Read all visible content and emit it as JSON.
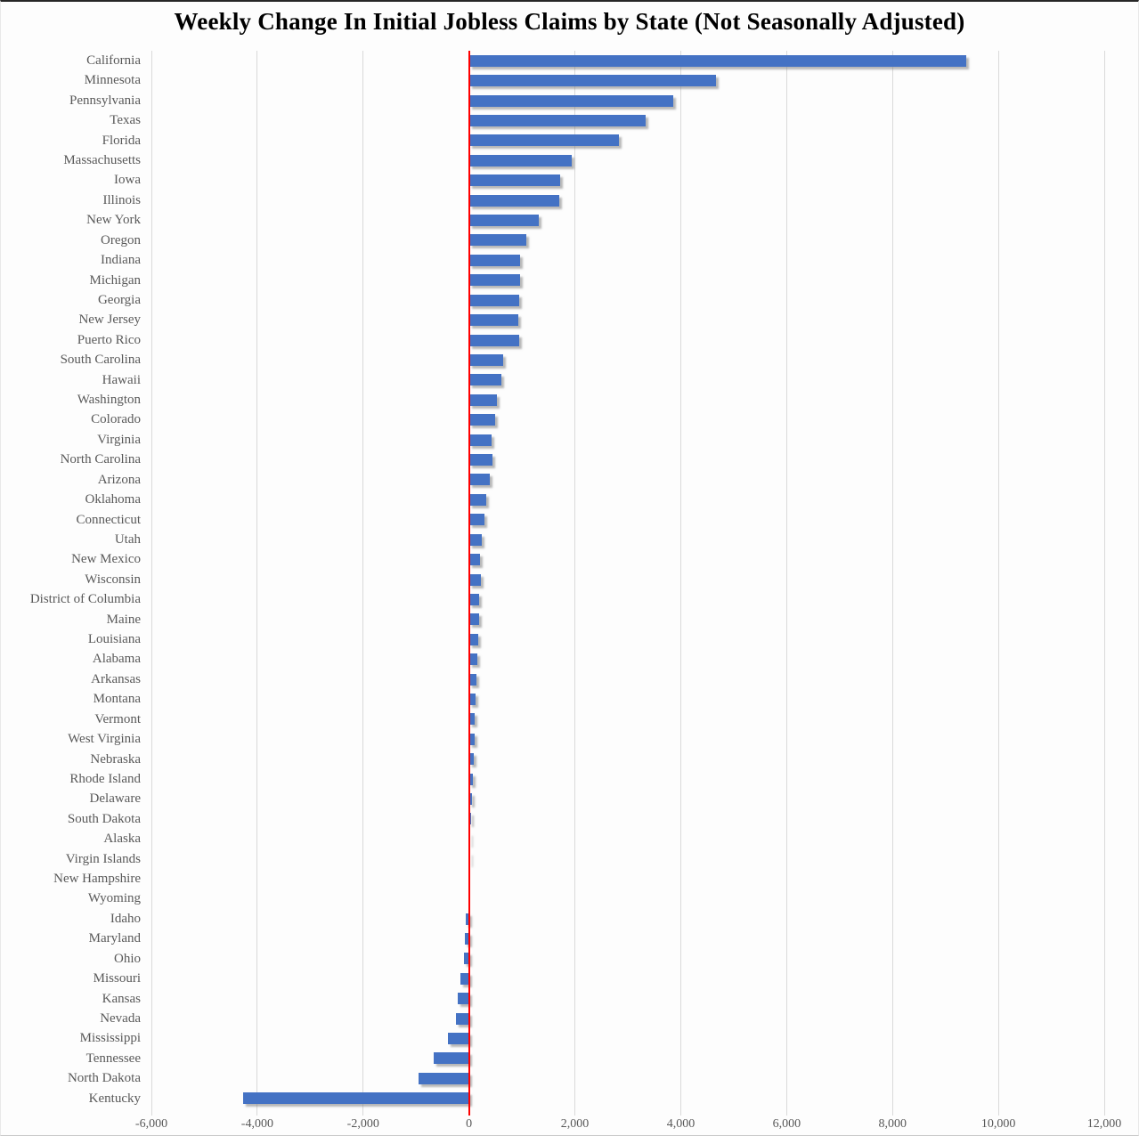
{
  "chart_data": {
    "type": "bar",
    "orientation": "horizontal",
    "title": "Weekly Change In Initial Jobless Claims by State (Not Seasonally Adjusted)",
    "xlabel": "",
    "ylabel": "",
    "xlim": [
      -6000,
      12000
    ],
    "x_ticks": [
      -6000,
      -4000,
      -2000,
      0,
      2000,
      4000,
      6000,
      8000,
      10000,
      12000
    ],
    "x_tick_labels": [
      "-6,000",
      "-4,000",
      "-2,000",
      "0",
      "2,000",
      "4,000",
      "6,000",
      "8,000",
      "10,000",
      "12,000"
    ],
    "grid": "vertical-gridlines",
    "legend": "none",
    "zero_axis_line": true,
    "categories": [
      "California",
      "Minnesota",
      "Pennsylvania",
      "Texas",
      "Florida",
      "Massachusetts",
      "Iowa",
      "Illinois",
      "New York",
      "Oregon",
      "Indiana",
      "Michigan",
      "Georgia",
      "New Jersey",
      "Puerto Rico",
      "South Carolina",
      "Hawaii",
      "Washington",
      "Colorado",
      "Virginia",
      "North Carolina",
      "Arizona",
      "Oklahoma",
      "Connecticut",
      "Utah",
      "New Mexico",
      "Wisconsin",
      "District of Columbia",
      "Maine",
      "Louisiana",
      "Alabama",
      "Arkansas",
      "Montana",
      "Vermont",
      "West Virginia",
      "Nebraska",
      "Rhode Island",
      "Delaware",
      "South Dakota",
      "Alaska",
      "Virgin Islands",
      "New Hampshire",
      "Wyoming",
      "Idaho",
      "Maryland",
      "Ohio",
      "Missouri",
      "Kansas",
      "Nevada",
      "Mississippi",
      "Tennessee",
      "North Dakota",
      "Kentucky"
    ],
    "values": [
      9400,
      4670,
      3850,
      3340,
      2840,
      1940,
      1725,
      1700,
      1320,
      1085,
      970,
      960,
      940,
      935,
      950,
      640,
      605,
      530,
      500,
      430,
      445,
      390,
      330,
      300,
      245,
      205,
      220,
      195,
      185,
      180,
      150,
      140,
      120,
      115,
      110,
      85,
      65,
      55,
      35,
      15,
      5,
      0,
      0,
      -65,
      -75,
      -90,
      -155,
      -205,
      -255,
      -390,
      -660,
      -950,
      -4270
    ]
  },
  "style": {
    "bar_color": "#4472C4",
    "zero_line_color": "#FF0000",
    "gridline_color": "#D9D9D9",
    "axis_label_color": "#595959",
    "title_color": "#000000",
    "background_color": "#FDFDFD"
  }
}
